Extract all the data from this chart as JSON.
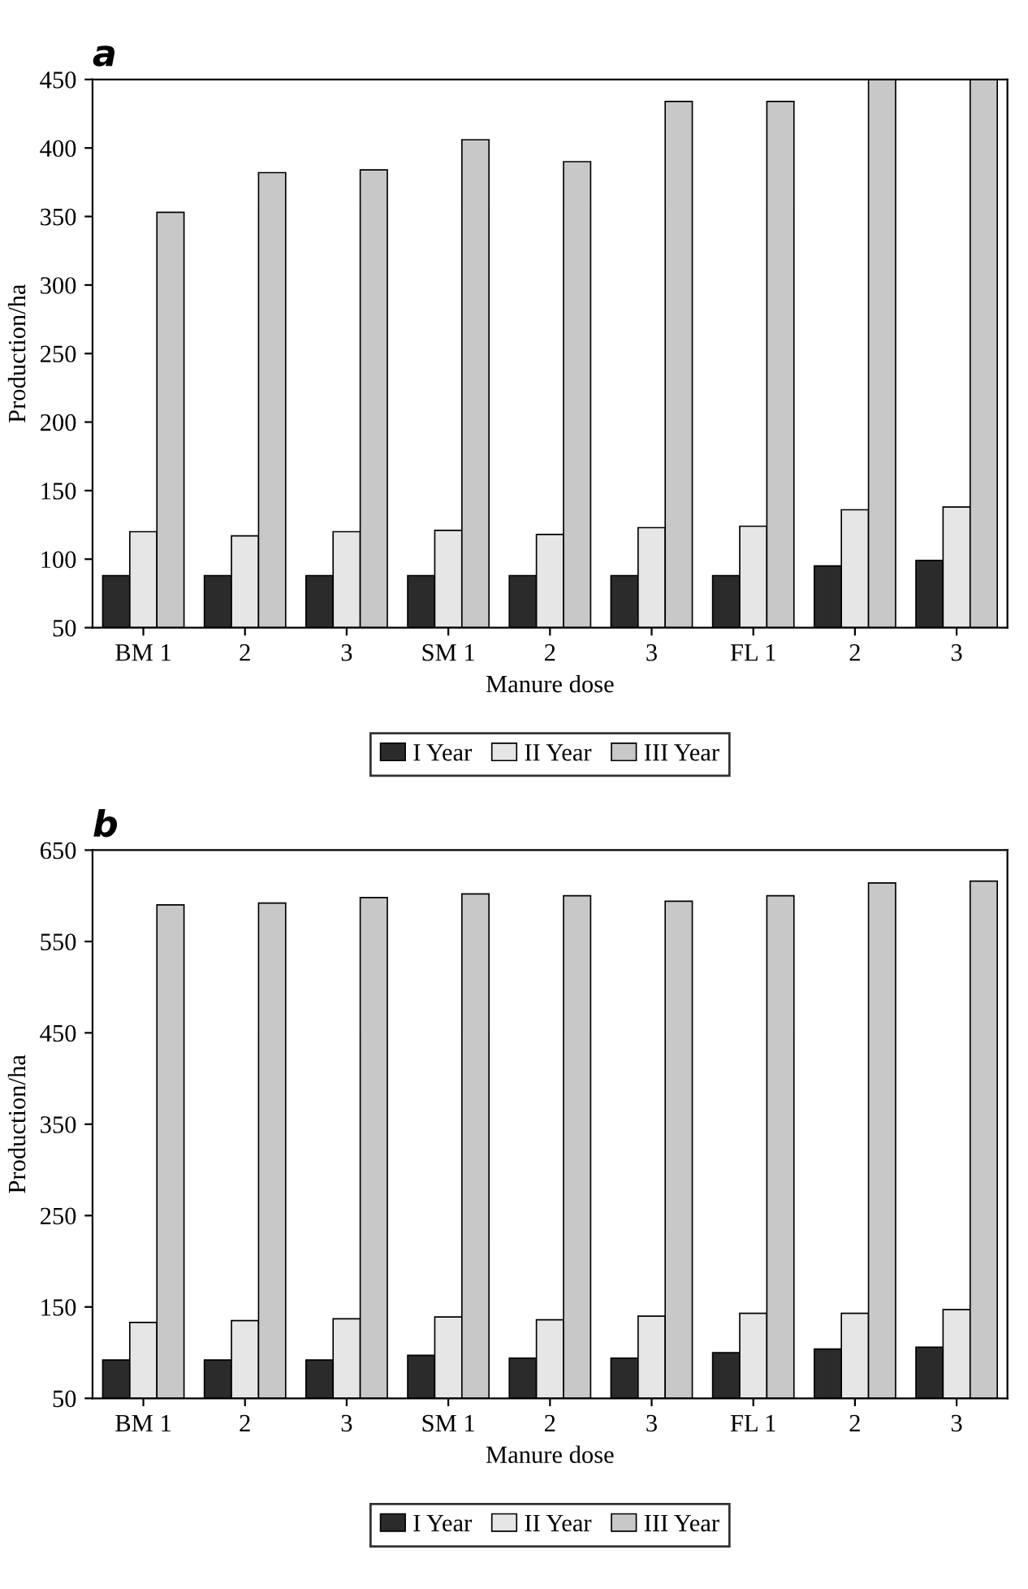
{
  "chart_data": [
    {
      "type": "bar",
      "title": "a",
      "xlabel": "Manure dose",
      "ylabel": "Production/ha",
      "categories": [
        "BM 1",
        "2",
        "3",
        "SM 1",
        "2",
        "3",
        "FL 1",
        "2",
        "3"
      ],
      "series": [
        {
          "name": "I Year",
          "color": "#2b2b2b",
          "values": [
            88,
            88,
            88,
            88,
            88,
            88,
            88,
            95,
            99
          ]
        },
        {
          "name": "II Year",
          "color": "#e6e6e6",
          "values": [
            120,
            117,
            120,
            121,
            118,
            123,
            124,
            136,
            138
          ]
        },
        {
          "name": "III Year",
          "color": "#c8c8c8",
          "values": [
            353,
            382,
            384,
            406,
            390,
            434,
            434,
            450,
            450
          ]
        }
      ],
      "ylim": [
        50,
        450
      ],
      "yticks": [
        50,
        100,
        150,
        200,
        250,
        300,
        350,
        400,
        450
      ],
      "grid": false,
      "legend": "bottom"
    },
    {
      "type": "bar",
      "title": "b",
      "xlabel": "Manure dose",
      "ylabel": "Production/ha",
      "categories": [
        "BM 1",
        "2",
        "3",
        "SM 1",
        "2",
        "3",
        "FL 1",
        "2",
        "3"
      ],
      "series": [
        {
          "name": "I Year",
          "color": "#2b2b2b",
          "values": [
            92,
            92,
            92,
            97,
            94,
            94,
            100,
            104,
            106
          ]
        },
        {
          "name": "II Year",
          "color": "#e6e6e6",
          "values": [
            133,
            135,
            137,
            139,
            136,
            140,
            143,
            143,
            147
          ]
        },
        {
          "name": "III Year",
          "color": "#c8c8c8",
          "values": [
            590,
            592,
            598,
            602,
            600,
            594,
            600,
            614,
            616
          ]
        }
      ],
      "ylim": [
        50,
        650
      ],
      "yticks": [
        50,
        150,
        250,
        350,
        450,
        550,
        650
      ],
      "grid": false,
      "legend": "bottom"
    }
  ]
}
